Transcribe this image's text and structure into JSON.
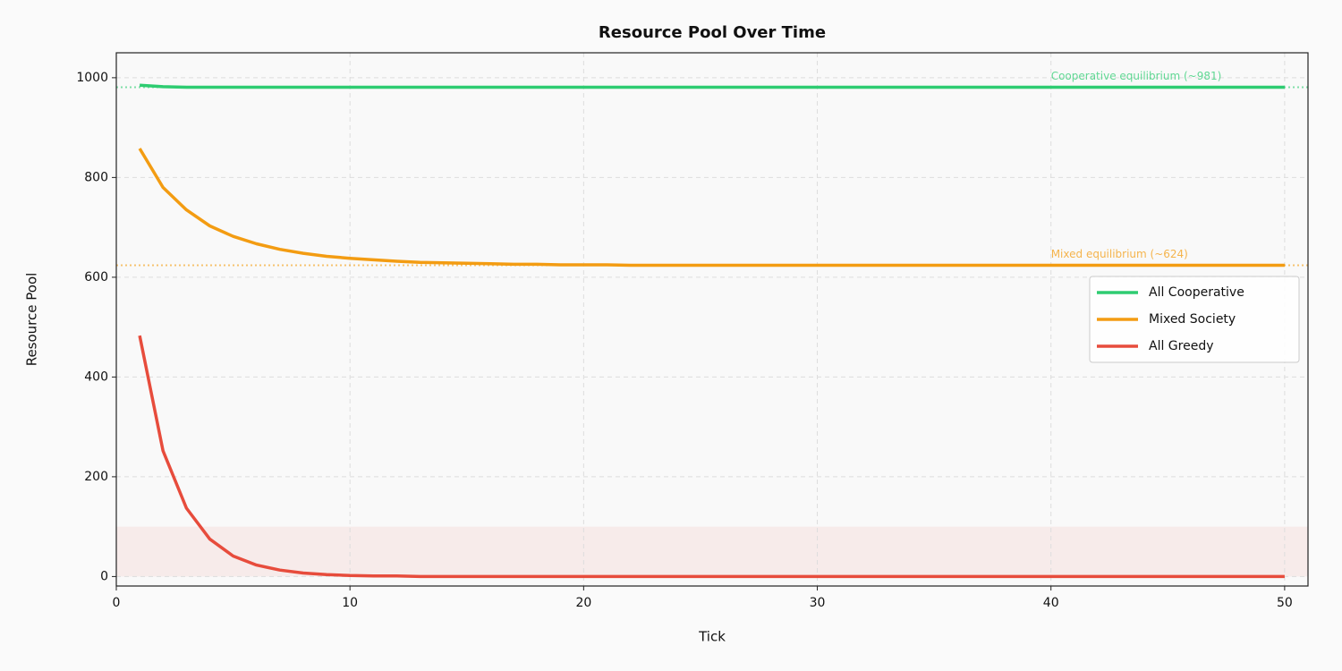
{
  "chart_data": {
    "type": "line",
    "title": "Resource Pool Over Time",
    "x_label": "Tick",
    "y_label": "Resource Pool",
    "x": [
      1,
      2,
      3,
      4,
      5,
      6,
      7,
      8,
      9,
      10,
      11,
      12,
      13,
      14,
      15,
      16,
      17,
      18,
      19,
      20,
      21,
      22,
      23,
      24,
      25,
      26,
      27,
      28,
      29,
      30,
      31,
      32,
      33,
      34,
      35,
      36,
      37,
      38,
      39,
      40,
      41,
      42,
      43,
      44,
      45,
      46,
      47,
      48,
      49,
      50
    ],
    "series": [
      {
        "name": "All Cooperative",
        "color": "#2ecc71",
        "values": [
          985,
          982,
          981,
          981,
          981,
          981,
          981,
          981,
          981,
          981,
          981,
          981,
          981,
          981,
          981,
          981,
          981,
          981,
          981,
          981,
          981,
          981,
          981,
          981,
          981,
          981,
          981,
          981,
          981,
          981,
          981,
          981,
          981,
          981,
          981,
          981,
          981,
          981,
          981,
          981,
          981,
          981,
          981,
          981,
          981,
          981,
          981,
          981,
          981,
          981
        ]
      },
      {
        "name": "Mixed Society",
        "color": "#f39c12",
        "values": [
          858,
          780,
          735,
          703,
          682,
          667,
          656,
          648,
          642,
          638,
          635,
          632,
          630,
          629,
          628,
          627,
          626,
          626,
          625,
          625,
          625,
          624,
          624,
          624,
          624,
          624,
          624,
          624,
          624,
          624,
          624,
          624,
          624,
          624,
          624,
          624,
          624,
          624,
          624,
          624,
          624,
          624,
          624,
          624,
          624,
          624,
          624,
          624,
          624,
          624
        ]
      },
      {
        "name": "All Greedy",
        "color": "#e74c3c",
        "values": [
          483,
          252,
          137,
          75,
          41,
          23,
          13,
          7,
          4,
          2,
          1,
          1,
          0,
          0,
          0,
          0,
          0,
          0,
          0,
          0,
          0,
          0,
          0,
          0,
          0,
          0,
          0,
          0,
          0,
          0,
          0,
          0,
          0,
          0,
          0,
          0,
          0,
          0,
          0,
          0,
          0,
          0,
          0,
          0,
          0,
          0,
          0,
          0,
          0,
          0
        ]
      }
    ],
    "reference_lines": [
      {
        "value": 981,
        "color": "#2ecc71"
      },
      {
        "value": 624,
        "color": "#f39c12"
      }
    ],
    "annotations": [
      {
        "text": "Cooperative equilibrium (~981)",
        "x": 40,
        "y": 981,
        "color": "#2ecc71"
      },
      {
        "text": "Mixed equilibrium (~624)",
        "x": 40,
        "y": 624,
        "color": "#f39c12"
      }
    ],
    "bands": [
      {
        "ymin": 0,
        "ymax": 100,
        "color": "#e74c3c"
      }
    ],
    "xlim": [
      0,
      51
    ],
    "ylim": [
      -19,
      1050
    ],
    "xticks": [
      0,
      10,
      20,
      30,
      40,
      50
    ],
    "yticks": [
      0,
      200,
      400,
      600,
      800,
      1000
    ],
    "grid": true,
    "legend": "center right"
  }
}
